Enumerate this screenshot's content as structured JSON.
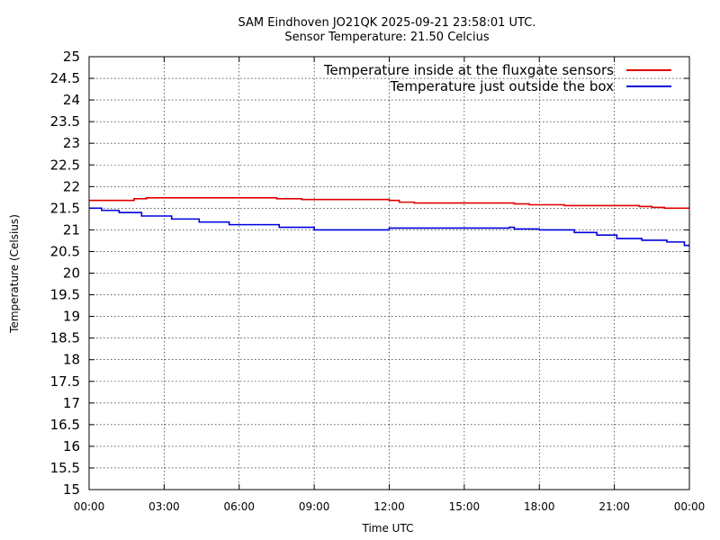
{
  "chart_data": {
    "type": "line",
    "title": "SAM Eindhoven JO21QK 2025-09-21 23:58:01 UTC.",
    "subtitle": "Sensor Temperature: 21.50 Celcius",
    "xlabel": "Time UTC",
    "ylabel": "Temperature (Celsius)",
    "xlim": [
      0,
      24
    ],
    "ylim": [
      15,
      25
    ],
    "grid": true,
    "legend_position": "top-right",
    "x_ticks": [
      {
        "value": 0,
        "label": "00:00"
      },
      {
        "value": 3,
        "label": "03:00"
      },
      {
        "value": 6,
        "label": "06:00"
      },
      {
        "value": 9,
        "label": "09:00"
      },
      {
        "value": 12,
        "label": "12:00"
      },
      {
        "value": 15,
        "label": "15:00"
      },
      {
        "value": 18,
        "label": "18:00"
      },
      {
        "value": 21,
        "label": "21:00"
      },
      {
        "value": 24,
        "label": "00:00"
      }
    ],
    "y_ticks": [
      {
        "value": 15,
        "label": "15"
      },
      {
        "value": 15.5,
        "label": "15.5"
      },
      {
        "value": 16,
        "label": "16"
      },
      {
        "value": 16.5,
        "label": "16.5"
      },
      {
        "value": 17,
        "label": "17"
      },
      {
        "value": 17.5,
        "label": "17.5"
      },
      {
        "value": 18,
        "label": "18"
      },
      {
        "value": 18.5,
        "label": "18.5"
      },
      {
        "value": 19,
        "label": "19"
      },
      {
        "value": 19.5,
        "label": "19.5"
      },
      {
        "value": 20,
        "label": "20"
      },
      {
        "value": 20.5,
        "label": "20.5"
      },
      {
        "value": 21,
        "label": "21"
      },
      {
        "value": 21.5,
        "label": "21.5"
      },
      {
        "value": 22,
        "label": "22"
      },
      {
        "value": 22.5,
        "label": "22.5"
      },
      {
        "value": 23,
        "label": "23"
      },
      {
        "value": 23.5,
        "label": "23.5"
      },
      {
        "value": 24,
        "label": "24"
      },
      {
        "value": 24.5,
        "label": "24.5"
      },
      {
        "value": 25,
        "label": "25"
      }
    ],
    "series": [
      {
        "name": "Temperature inside at the fluxgate sensors",
        "color": "#e00000",
        "x": [
          0,
          1.7,
          1.8,
          2.2,
          2.3,
          2.7,
          3.0,
          3.5,
          4.0,
          5.0,
          6.0,
          7.0,
          7.5,
          7.8,
          8.2,
          8.5,
          9.0,
          10.0,
          11.0,
          12.0,
          12.4,
          12.8,
          13.0,
          14.0,
          15.0,
          16.0,
          17.0,
          17.6,
          18.0,
          18.5,
          19.0,
          20.0,
          21.0,
          22.0,
          22.5,
          23.0,
          24.0
        ],
        "y": [
          21.68,
          21.68,
          21.72,
          21.72,
          21.74,
          21.74,
          21.74,
          21.74,
          21.74,
          21.74,
          21.74,
          21.74,
          21.72,
          21.72,
          21.72,
          21.7,
          21.7,
          21.7,
          21.7,
          21.68,
          21.64,
          21.64,
          21.62,
          21.62,
          21.62,
          21.62,
          21.6,
          21.58,
          21.58,
          21.58,
          21.56,
          21.56,
          21.56,
          21.54,
          21.52,
          21.5,
          21.5
        ]
      },
      {
        "name": "Temperature just outside the box",
        "color": "#0000dd",
        "x": [
          0,
          0.4,
          0.5,
          1.1,
          1.2,
          2.0,
          2.1,
          3.2,
          3.3,
          4.3,
          4.4,
          5.5,
          5.6,
          7.5,
          7.6,
          9.0,
          10.0,
          11.5,
          12.0,
          13.0,
          14.0,
          15.0,
          16.0,
          16.8,
          17.0,
          18.0,
          19.0,
          19.3,
          19.4,
          20.2,
          20.3,
          21.0,
          21.1,
          22.0,
          22.1,
          23.0,
          23.1,
          23.7,
          23.8,
          24.0
        ],
        "y": [
          21.5,
          21.5,
          21.45,
          21.45,
          21.4,
          21.4,
          21.32,
          21.32,
          21.25,
          21.25,
          21.18,
          21.18,
          21.12,
          21.12,
          21.06,
          21.0,
          21.0,
          21.0,
          21.04,
          21.04,
          21.04,
          21.04,
          21.04,
          21.06,
          21.02,
          21.0,
          21.0,
          21.0,
          20.94,
          20.94,
          20.88,
          20.88,
          20.8,
          20.8,
          20.76,
          20.76,
          20.72,
          20.72,
          20.64,
          20.64
        ]
      }
    ]
  }
}
